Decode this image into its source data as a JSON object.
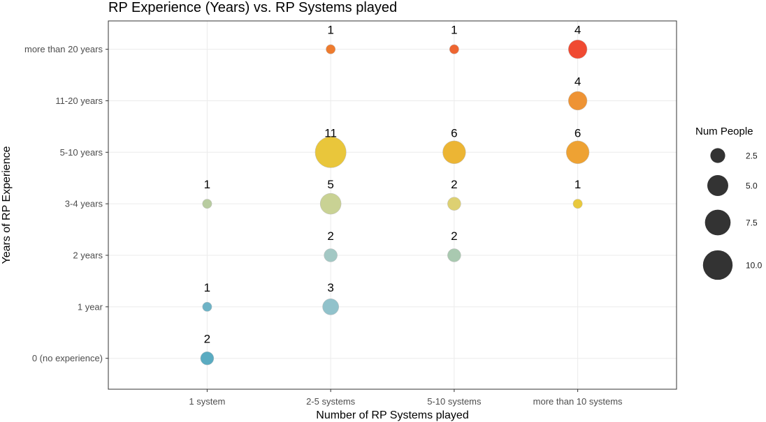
{
  "chart_data": {
    "type": "scatter",
    "subtype": "bubble",
    "title": "RP Experience (Years) vs. RP Systems played",
    "xlabel": "Number of RP Systems played",
    "ylabel": "Years of RP Experience",
    "x_categories": [
      "1 system",
      "2-5 systems",
      "5-10 systems",
      "more than 10 systems"
    ],
    "y_categories": [
      "0 (no experience)",
      "1 year",
      "2 years",
      "3-4 years",
      "5-10 years",
      "11-20 years",
      "more than 20 years"
    ],
    "grid": true,
    "points": [
      {
        "x": "1 system",
        "y": "0 (no experience)",
        "count": 2,
        "color": "#5aabc1"
      },
      {
        "x": "1 system",
        "y": "1 year",
        "count": 1,
        "color": "#6eb3c6"
      },
      {
        "x": "1 system",
        "y": "3-4 years",
        "count": 1,
        "color": "#b8cca0"
      },
      {
        "x": "2-5 systems",
        "y": "1 year",
        "count": 3,
        "color": "#91c2cb"
      },
      {
        "x": "2-5 systems",
        "y": "2 years",
        "count": 2,
        "color": "#a3c8c4"
      },
      {
        "x": "2-5 systems",
        "y": "3-4 years",
        "count": 5,
        "color": "#c9d294"
      },
      {
        "x": "2-5 systems",
        "y": "5-10 years",
        "count": 11,
        "color": "#e9c63b"
      },
      {
        "x": "2-5 systems",
        "y": "more than 20 years",
        "count": 1,
        "color": "#ee7b2e"
      },
      {
        "x": "5-10 systems",
        "y": "2 years",
        "count": 2,
        "color": "#a9c9b0"
      },
      {
        "x": "5-10 systems",
        "y": "3-4 years",
        "count": 2,
        "color": "#ddd072"
      },
      {
        "x": "5-10 systems",
        "y": "5-10 years",
        "count": 6,
        "color": "#ecb534"
      },
      {
        "x": "5-10 systems",
        "y": "more than 20 years",
        "count": 1,
        "color": "#ee6530"
      },
      {
        "x": "more than 10 systems",
        "y": "3-4 years",
        "count": 1,
        "color": "#e9c93d"
      },
      {
        "x": "more than 10 systems",
        "y": "5-10 years",
        "count": 6,
        "color": "#eea233"
      },
      {
        "x": "more than 10 systems",
        "y": "11-20 years",
        "count": 4,
        "color": "#ee9334"
      },
      {
        "x": "more than 10 systems",
        "y": "more than 20 years",
        "count": 4,
        "color": "#f04a32"
      }
    ],
    "legend": {
      "title": "Num People",
      "placement": "right",
      "color": "#333333",
      "values": [
        {
          "value": 2.5,
          "label": "2.5"
        },
        {
          "value": 5.0,
          "label": "5.0"
        },
        {
          "value": 7.5,
          "label": "7.5"
        },
        {
          "value": 10.0,
          "label": "10.0"
        }
      ]
    }
  }
}
